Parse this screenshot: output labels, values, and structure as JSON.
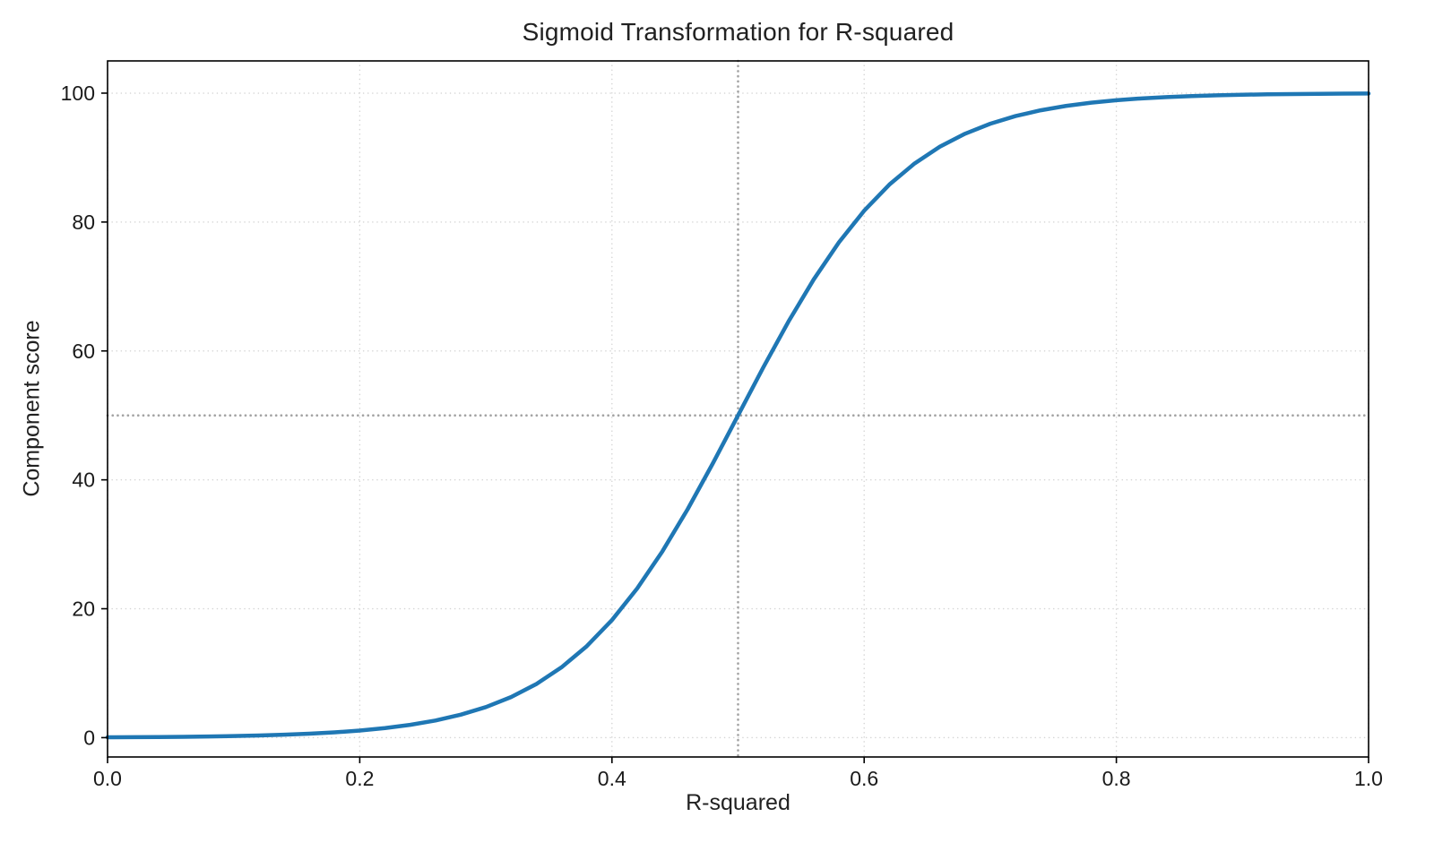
{
  "figure": {
    "kind": "matplotlib-style line chart",
    "background": "#ffffff"
  },
  "chart_data": {
    "type": "line",
    "title": "Sigmoid Transformation for R-squared",
    "xlabel": "R-squared",
    "ylabel": "Component score",
    "xlim": [
      0.0,
      1.0
    ],
    "ylim": [
      -3,
      105
    ],
    "xticks": [
      0.0,
      0.2,
      0.4,
      0.6,
      0.8,
      1.0
    ],
    "xtick_labels": [
      "0.0",
      "0.2",
      "0.4",
      "0.6",
      "0.8",
      "1.0"
    ],
    "yticks": [
      0,
      20,
      40,
      60,
      80,
      100
    ],
    "ytick_labels": [
      "0",
      "20",
      "40",
      "60",
      "80",
      "100"
    ],
    "grid": true,
    "grid_style": "dotted",
    "legend_position": "none",
    "colors": {
      "curve": "#1f77b4",
      "grid": "#d4d4d4",
      "reference_line": "#a3a3a3",
      "axis": "#000000",
      "text": "#1a1a1a"
    },
    "reference_lines": [
      {
        "orientation": "vertical",
        "x": 0.5,
        "style": "dotted"
      },
      {
        "orientation": "horizontal",
        "y": 50,
        "style": "dotted"
      }
    ],
    "series": [
      {
        "name": "sigmoid-curve",
        "color": "#1f77b4",
        "line_width": 4.5,
        "x": [
          0.0,
          0.02,
          0.04,
          0.06,
          0.08,
          0.1,
          0.12,
          0.14,
          0.16,
          0.18,
          0.2,
          0.22,
          0.24,
          0.26,
          0.28,
          0.3,
          0.32,
          0.34,
          0.36,
          0.38,
          0.4,
          0.42,
          0.44,
          0.46,
          0.48,
          0.5,
          0.52,
          0.54,
          0.56,
          0.58,
          0.6,
          0.62,
          0.64,
          0.66,
          0.68,
          0.7,
          0.72,
          0.74,
          0.76,
          0.78,
          0.8,
          0.82,
          0.84,
          0.86,
          0.88,
          0.9,
          0.92,
          0.94,
          0.96,
          0.98,
          1.0
        ],
        "y": [
          0.055,
          0.075,
          0.101,
          0.136,
          0.183,
          0.247,
          0.334,
          0.45,
          0.606,
          0.816,
          1.099,
          1.478,
          1.984,
          2.66,
          3.557,
          4.743,
          6.297,
          8.317,
          10.909,
          14.185,
          18.243,
          23.148,
          28.905,
          35.434,
          42.556,
          50.0,
          57.444,
          64.566,
          71.095,
          76.852,
          81.757,
          85.815,
          89.091,
          91.683,
          93.703,
          95.257,
          96.443,
          97.34,
          98.016,
          98.522,
          98.901,
          99.184,
          99.394,
          99.55,
          99.667,
          99.753,
          99.817,
          99.864,
          99.899,
          99.925,
          99.945
        ]
      }
    ]
  }
}
